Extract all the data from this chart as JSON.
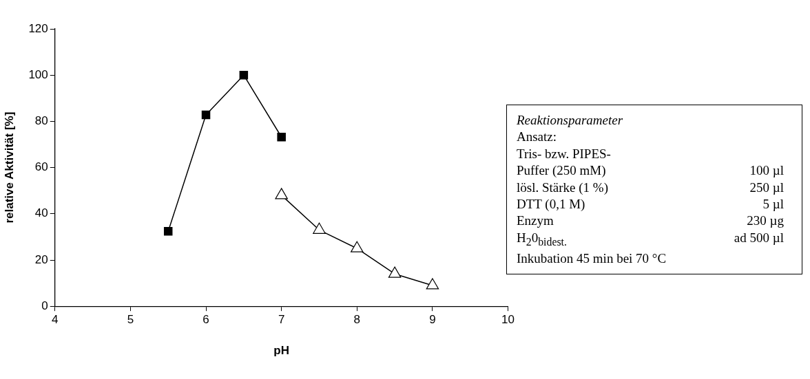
{
  "chart_data": {
    "type": "line",
    "xlabel": "pH",
    "ylabel": "relative Aktivität [%]",
    "xlim": [
      4,
      10
    ],
    "xticks": [
      4,
      5,
      6,
      7,
      8,
      9,
      10
    ],
    "ylim": [
      0,
      120
    ],
    "yticks": [
      0,
      20,
      40,
      60,
      80,
      100,
      120
    ],
    "grid": false,
    "legend": false,
    "series": [
      {
        "color": "#000000",
        "marker": "square",
        "x": [
          5.5,
          6,
          6.5,
          7
        ],
        "values": [
          32.4,
          82.8,
          100,
          73.2
        ]
      },
      {
        "color": "#000000",
        "marker": "triangle",
        "x": [
          7,
          7.5,
          8,
          8.5,
          9
        ],
        "values": [
          48,
          33,
          25,
          14,
          9
        ]
      }
    ],
    "annotations": [
      "Reaktionsparameter",
      "Ansatz:",
      "Tris- bzw. PIPES-",
      "Puffer (250 mM)\t100 µl",
      "lösl. Stärke (1 %)\t250 µl",
      "DTT (0,1 M)\t5 µl",
      "Enzym\t230 µg",
      "H$_{2}$0$_{bidest.}$\tad 500 µl",
      "Inkubation 45 min bei 70 °C"
    ]
  }
}
